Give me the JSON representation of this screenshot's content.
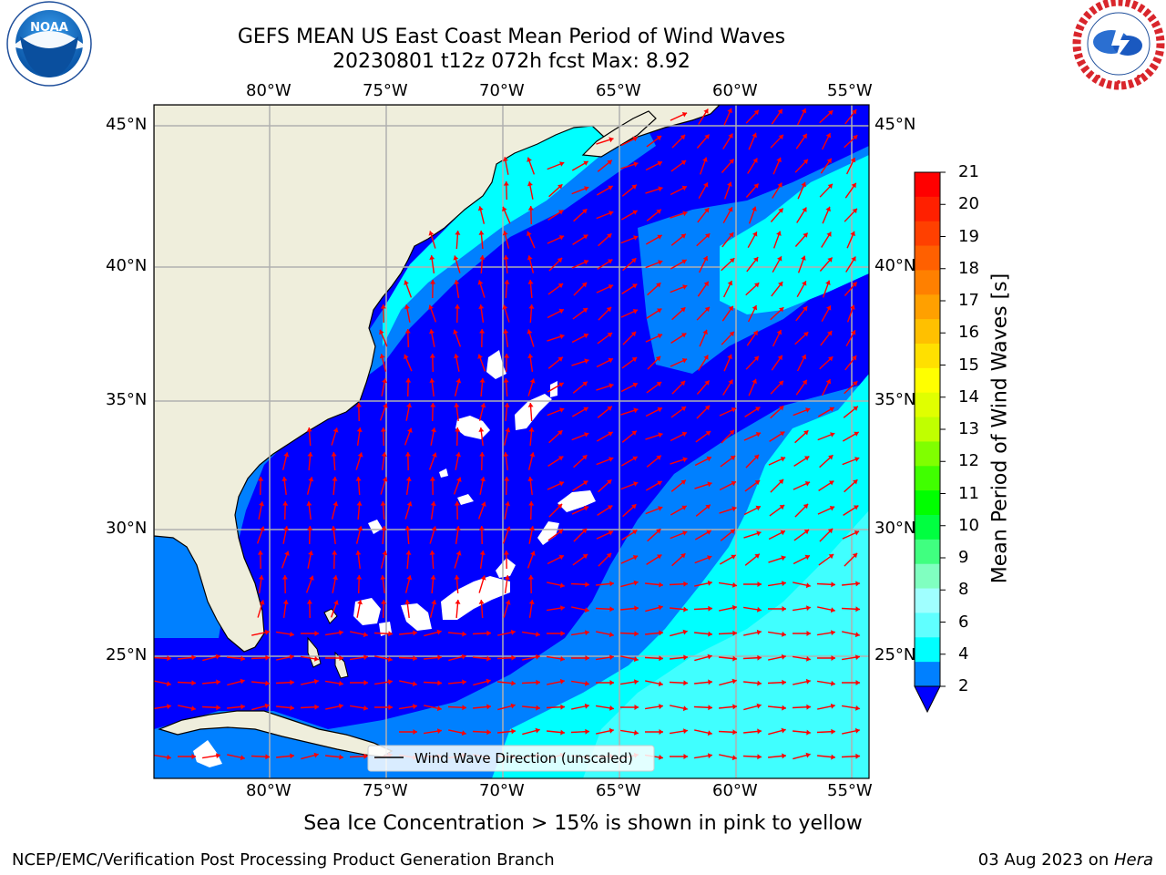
{
  "header": {
    "title_line1": "GEFS MEAN US East Coast Mean Period of Wind Waves",
    "title_line2": "20230801 t12z 072h fcst   Max: 8.92"
  },
  "logos": {
    "left": {
      "text": "NOAA",
      "ring_text": "NATIONAL OCEANIC AND ATMOSPHERIC ADMINISTRATION · U.S. DEPARTMENT OF COMMERCE"
    },
    "right": {
      "ring_text": "NATIONAL WEATHER SERVICE"
    }
  },
  "map": {
    "lon_labels": [
      "80°W",
      "75°W",
      "70°W",
      "65°W",
      "60°W",
      "55°W"
    ],
    "lat_labels": [
      "45°N",
      "40°N",
      "35°N",
      "30°N",
      "25°N"
    ],
    "legend": "Wind Wave Direction (unscaled)",
    "colors": {
      "land": "#efeedc",
      "ocean_low": "#0000ff",
      "ocean_mid": "#0080ff",
      "ocean_high": "#00ffff",
      "ocean_higher": "#40ffff",
      "arrow": "#ff0000",
      "grid": "#b0b0b0"
    }
  },
  "colorbar": {
    "label": "Mean Period of Wind Waves [s]",
    "ticks": [
      "21",
      "20",
      "19",
      "18",
      "17",
      "16",
      "15",
      "14",
      "13",
      "12",
      "11",
      "10",
      "9",
      "8",
      "6",
      "4",
      "2"
    ],
    "colors_top_to_bottom": [
      "#ff0000",
      "#ff2000",
      "#ff4000",
      "#ff6000",
      "#ff8000",
      "#ffa000",
      "#ffc000",
      "#ffe000",
      "#ffff00",
      "#e0ff00",
      "#c0ff00",
      "#80ff00",
      "#40ff00",
      "#00ff00",
      "#00ff40",
      "#40ff80",
      "#80ffc0",
      "#a0ffff",
      "#60ffff",
      "#00ffff",
      "#0080ff"
    ]
  },
  "footer": {
    "note": "Sea Ice Concentration > 15% is shown in pink to yellow",
    "left": "NCEP/EMC/Verification Post Processing Product Generation Branch",
    "right_date": "03 Aug 2023 on ",
    "right_host": "Hera"
  }
}
